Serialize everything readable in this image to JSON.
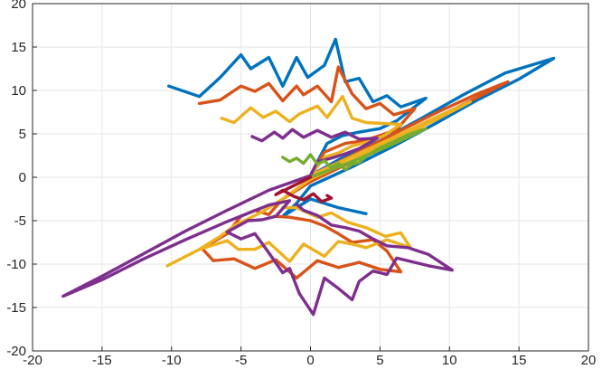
{
  "chart_data": {
    "type": "line",
    "title": "",
    "xlabel": "",
    "ylabel": "",
    "xlim": [
      -20,
      20
    ],
    "ylim": [
      -20,
      20
    ],
    "grid": true,
    "legend": "none",
    "xticks": [
      -20,
      -15,
      -10,
      -5,
      0,
      5,
      10,
      15,
      20
    ],
    "yticks": [
      -20,
      -15,
      -10,
      -5,
      0,
      5,
      10,
      15,
      20
    ],
    "xtick_labels": [
      "-20",
      "-15",
      "-10",
      "-5",
      "0",
      "5",
      "10",
      "15",
      "20"
    ],
    "ytick_labels": [
      "-20",
      "-15",
      "-10",
      "-5",
      "0",
      "5",
      "10",
      "15",
      "20"
    ],
    "series": [
      {
        "color": "#0072BD",
        "x": [
          -10.2,
          -8,
          -6.5,
          -5,
          -4.3,
          -3,
          -2,
          -1,
          -0.2,
          1,
          1.8,
          2.5,
          3.5,
          4.5,
          5.5,
          6.5,
          8.3,
          6.2,
          5,
          3.5,
          2.3,
          1.2,
          0.5,
          0,
          2,
          5,
          8,
          11,
          14,
          17.5,
          15,
          12,
          9,
          6,
          3,
          0,
          -1,
          -2,
          0,
          2,
          4
        ],
        "y": [
          10.5,
          9.3,
          11.5,
          14.1,
          12.5,
          13.8,
          10.5,
          13.8,
          11.5,
          12.9,
          15.9,
          11,
          11.4,
          8.7,
          9.4,
          8.1,
          9.1,
          6.5,
          5.6,
          5.2,
          4.8,
          3.9,
          1.8,
          0.2,
          2,
          4.2,
          6.8,
          9.5,
          12,
          13.7,
          11.3,
          8.9,
          6.2,
          3.6,
          1.2,
          -1,
          -3,
          -4.5,
          -2.5,
          -3.5,
          -4.2
        ]
      },
      {
        "color": "#D95319",
        "x": [
          -8,
          -6.5,
          -5,
          -4,
          -3,
          -2,
          -1,
          -0.5,
          0.5,
          1.5,
          2,
          3,
          4,
          5,
          6,
          7.5,
          6.2,
          5,
          3.8,
          2.5,
          1,
          0,
          3,
          6,
          9,
          12,
          14.2,
          12,
          9,
          6,
          3,
          0,
          -2,
          -3,
          -4,
          -5,
          -6,
          -7.8,
          -7,
          -5.5,
          -4,
          -2.5,
          -1,
          0.5,
          2,
          3.5,
          5,
          6.5,
          5.5,
          4.5,
          3,
          2,
          1,
          0,
          -1.5,
          -2.6
        ],
        "y": [
          8.5,
          8.9,
          10.5,
          9.9,
          10.8,
          8.8,
          10.5,
          9.5,
          10.5,
          8.7,
          12.7,
          9.6,
          7.9,
          8.5,
          7.2,
          7.9,
          5.5,
          4.8,
          4.2,
          3.9,
          2.9,
          0.2,
          2.5,
          5,
          7.4,
          9.6,
          11,
          9.2,
          6.8,
          4.3,
          1.8,
          -0.5,
          -2.5,
          -4.3,
          -3.8,
          -4.5,
          -6.5,
          -8.2,
          -9.6,
          -9.4,
          -10.5,
          -9.5,
          -11.6,
          -9.6,
          -10.4,
          -9.8,
          -10.6,
          -10.9,
          -8.5,
          -7.2,
          -7.5,
          -6.5,
          -5.6,
          -5,
          -4.6,
          -4.5
        ]
      },
      {
        "color": "#EDB120",
        "x": [
          -6.4,
          -5.5,
          -4.3,
          -3.4,
          -2.5,
          -1.5,
          -0.8,
          0.5,
          1.2,
          2.3,
          3,
          4,
          5.2,
          6.5,
          5.3,
          4.2,
          3,
          2,
          1,
          0,
          3,
          6,
          9,
          11.5,
          9,
          6,
          3,
          0,
          -2,
          -3.5,
          -4.5,
          -5.5,
          -6.5,
          -8,
          -10.3,
          -8,
          -6,
          -5.2,
          -4,
          -3,
          -1.5,
          -0.5,
          1,
          2,
          3,
          4,
          5.5,
          7.2,
          6.5,
          5.4,
          4,
          2.7,
          1.5,
          0.5,
          -1,
          -2
        ],
        "y": [
          6.8,
          6.3,
          8,
          6.9,
          7.6,
          6.4,
          7.3,
          8.2,
          6.9,
          9.3,
          6.8,
          6.3,
          6.2,
          6.1,
          4.8,
          4.1,
          3.6,
          2.8,
          2.3,
          0.2,
          2.4,
          4.6,
          6.9,
          8.7,
          6.6,
          4.3,
          2,
          -0.2,
          -2.5,
          -4,
          -4.8,
          -5.6,
          -6.8,
          -8.3,
          -10.2,
          -8.3,
          -7.3,
          -8.3,
          -8.3,
          -7.5,
          -9.7,
          -7.7,
          -9.1,
          -7.4,
          -7.7,
          -8.1,
          -7.2,
          -8.1,
          -6.4,
          -6.8,
          -5.8,
          -5.2,
          -4.1,
          -4.6,
          -3.5,
          -3.5
        ]
      },
      {
        "color": "#7E2F8E",
        "x": [
          -4.2,
          -3.5,
          -2.6,
          -2,
          -1.3,
          -0.5,
          0.5,
          1.5,
          2.5,
          3.5,
          4.8,
          3.5,
          2.5,
          1.5,
          0.5,
          0,
          -3,
          -6,
          -9,
          -12,
          -15,
          -17.8,
          -15,
          -12,
          -9,
          -6,
          -3,
          -1.5,
          -2.5,
          -3.5,
          -4.5,
          -6,
          -5,
          -4,
          -3,
          -2,
          -1.5,
          -0.8,
          0.2,
          1,
          2,
          3,
          3.5,
          4.5,
          5.5,
          6.2,
          7.5,
          8.5,
          10.2,
          8.5,
          7,
          5.5,
          4.5,
          3.5,
          2.5,
          1.5,
          0.5,
          -0.5,
          -1
        ],
        "y": [
          4.7,
          4.2,
          5.2,
          4.5,
          5.5,
          4.6,
          5.4,
          4.6,
          5.2,
          4.4,
          4.5,
          3.3,
          2.7,
          2.2,
          1.8,
          0.2,
          -1.5,
          -3.8,
          -6.2,
          -8.8,
          -11.4,
          -13.7,
          -11.8,
          -9.4,
          -7.2,
          -5.1,
          -3.2,
          -2.7,
          -4.5,
          -4.9,
          -5,
          -6.3,
          -7.1,
          -6.5,
          -8.7,
          -11,
          -10.5,
          -13.4,
          -15.8,
          -11.6,
          -12.8,
          -14.1,
          -12,
          -10.8,
          -11.2,
          -9.3,
          -9.8,
          -10.2,
          -10.7,
          -8.9,
          -8.1,
          -7.9,
          -7.1,
          -6.2,
          -5.8,
          -5.5,
          -4.4,
          -3.8,
          -3.1
        ]
      },
      {
        "color": "#77AC30",
        "x": [
          -2,
          -1.5,
          -1,
          -0.5,
          0,
          0.5,
          1,
          1.5,
          2,
          2.5,
          3,
          3.5,
          4,
          5,
          6,
          7,
          8.3,
          7,
          5.5,
          4,
          3,
          2,
          1,
          0
        ],
        "y": [
          2.3,
          1.8,
          2.2,
          1.6,
          2.6,
          1.5,
          1.9,
          1.1,
          1.6,
          0.9,
          1.5,
          1.7,
          2.4,
          3.4,
          4.1,
          4.9,
          5.6,
          4.6,
          3.5,
          2.5,
          1.8,
          1.2,
          0.6,
          0
        ]
      },
      {
        "color": "#A2142F",
        "x": [
          0,
          -1,
          -2.5,
          -2,
          -1.2,
          -0.5,
          0.2,
          0.8,
          1.5,
          1.2
        ],
        "y": [
          0,
          -0.8,
          -2,
          -1.5,
          -2.2,
          -2.6,
          -1.9,
          -2.8,
          -2.4,
          -2.1
        ]
      }
    ]
  }
}
